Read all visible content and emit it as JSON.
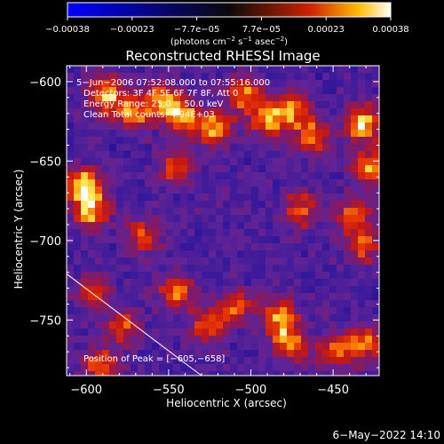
{
  "chart_data": {
    "type": "heatmap",
    "title": "Reconstructed RHESSI Image",
    "xlabel": "Heliocentric X (arcsec)",
    "ylabel": "Heliocentric Y (arcsec)",
    "xlim": [
      -612,
      -422
    ],
    "ylim": [
      -785,
      -590
    ],
    "x_ticks": [
      -600,
      -550,
      -500,
      -450
    ],
    "y_ticks": [
      -600,
      -650,
      -700,
      -750
    ],
    "x_tick_labels": [
      "−600",
      "−550",
      "−500",
      "−450"
    ],
    "y_tick_labels": [
      "−600",
      "−650",
      "−700",
      "−750"
    ],
    "colorbar": {
      "range": [
        -0.00038,
        0.00038
      ],
      "tick_labels": [
        "−0.00038",
        "−0.00023",
        "−7.7e−05",
        "7.7e−05",
        "0.00023",
        "0.00038"
      ],
      "unit_parts": [
        "(photons cm",
        "−2",
        " s",
        "−1",
        " asec",
        "−2",
        ")"
      ]
    },
    "annotations": [
      "5−Jun−2006 07:52:08.000 to 07:55:16.000",
      "Detectors: 3F 4F 5F 6F 7F 8F, Att 0",
      "Energy Range: 25.0 − 50.0 keV",
      "Clean    Total counts: 4.94E+03"
    ],
    "peak_label": "Position of Peak = [−605,−658]",
    "peak_position": [
      -605,
      -658
    ],
    "limb_line": [
      [
        -612,
        -721
      ],
      [
        -530,
        -785
      ]
    ],
    "hot_spots": [
      {
        "x": -601,
        "y": -666,
        "w": 1.0
      },
      {
        "x": -597,
        "y": -682,
        "w": 0.8
      },
      {
        "x": -588,
        "y": -609,
        "w": 0.85
      },
      {
        "x": -571,
        "y": -620,
        "w": 0.7
      },
      {
        "x": -553,
        "y": -612,
        "w": 0.75
      },
      {
        "x": -546,
        "y": -654,
        "w": 0.6
      },
      {
        "x": -541,
        "y": -623,
        "w": 0.75
      },
      {
        "x": -521,
        "y": -629,
        "w": 0.8
      },
      {
        "x": -504,
        "y": -608,
        "w": 0.7
      },
      {
        "x": -490,
        "y": -624,
        "w": 0.75
      },
      {
        "x": -475,
        "y": -618,
        "w": 0.7
      },
      {
        "x": -462,
        "y": -634,
        "w": 0.7
      },
      {
        "x": -432,
        "y": -626,
        "w": 0.9
      },
      {
        "x": -427,
        "y": -654,
        "w": 0.8
      },
      {
        "x": -439,
        "y": -684,
        "w": 0.65
      },
      {
        "x": -432,
        "y": -704,
        "w": 0.6
      },
      {
        "x": -596,
        "y": -733,
        "w": 0.6
      },
      {
        "x": -578,
        "y": -754,
        "w": 0.6
      },
      {
        "x": -545,
        "y": -732,
        "w": 0.7
      },
      {
        "x": -526,
        "y": -753,
        "w": 0.7
      },
      {
        "x": -509,
        "y": -742,
        "w": 0.6
      },
      {
        "x": -482,
        "y": -749,
        "w": 0.85
      },
      {
        "x": -476,
        "y": -766,
        "w": 0.7
      },
      {
        "x": -450,
        "y": -770,
        "w": 0.6
      },
      {
        "x": -432,
        "y": -765,
        "w": 0.75
      },
      {
        "x": -591,
        "y": -779,
        "w": 0.7
      },
      {
        "x": -565,
        "y": -697,
        "w": 0.6
      },
      {
        "x": -470,
        "y": -681,
        "w": 0.6
      }
    ],
    "grid": false,
    "legend": "none"
  },
  "footer_date": "6−May−2022 14:10"
}
